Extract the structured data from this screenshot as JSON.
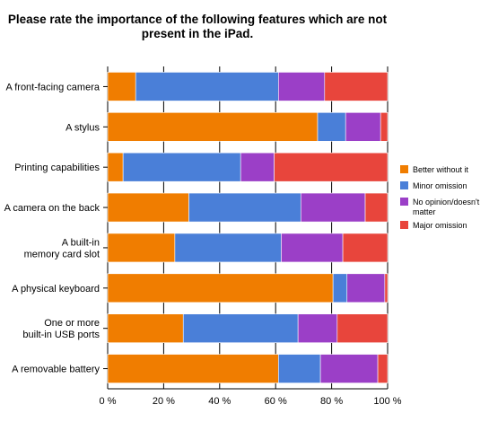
{
  "chart_data": {
    "type": "bar",
    "orientation": "horizontal",
    "stacked": true,
    "title": "Please rate the importance of the following features which are not present in the iPad.",
    "title_lines": [
      "Please rate the importance of the following features which are not",
      "present in the iPad."
    ],
    "categories": [
      [
        "A front-facing camera"
      ],
      [
        "A stylus"
      ],
      [
        "Printing capabilities"
      ],
      [
        "A camera on the back"
      ],
      [
        "A built-in",
        "memory card slot"
      ],
      [
        "A physical keyboard"
      ],
      [
        "One or more",
        "built-in USB ports"
      ],
      [
        "A removable battery"
      ]
    ],
    "series": [
      {
        "name": "Better without it",
        "color": "#f07d00",
        "values": [
          10,
          75,
          5.5,
          29,
          24,
          80.5,
          27,
          61
        ]
      },
      {
        "name": "Minor omission",
        "color": "#4a7fd8",
        "values": [
          51,
          10,
          42,
          40,
          38,
          5,
          41,
          15
        ]
      },
      {
        "name": "No opinion/doesn't matter",
        "color": "#9b3fc7",
        "values": [
          16.5,
          12.5,
          12,
          23,
          22,
          13.5,
          14,
          20.5
        ]
      },
      {
        "name": "Major omission",
        "color": "#e8453c",
        "values": [
          22.5,
          2.5,
          40.5,
          8,
          16,
          1,
          18,
          3.5
        ]
      }
    ],
    "legend_lines": [
      [
        "Better without it"
      ],
      [
        "Minor omission"
      ],
      [
        "No opinion/doesn't",
        "matter"
      ],
      [
        "Major omission"
      ]
    ],
    "x_axis": {
      "min": 0,
      "max": 100,
      "ticks": [
        "0 %",
        "20 %",
        "40 %",
        "60 %",
        "80 %",
        "100 %"
      ]
    },
    "grid": true,
    "legend_position": "right"
  }
}
